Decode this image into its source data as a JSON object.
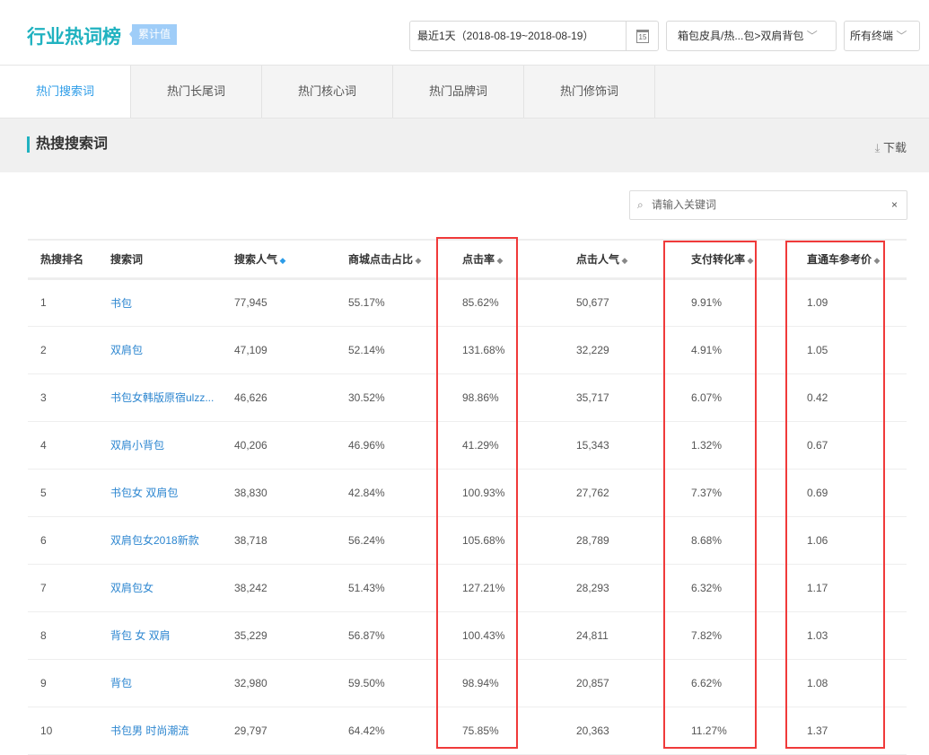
{
  "header": {
    "title": "行业热词榜",
    "badge": "累计值",
    "date_range": "最近1天（2018-08-19~2018-08-19）",
    "calendar_day": "15",
    "category": "箱包皮具/热...包>双肩背包",
    "terminal": "所有终端"
  },
  "tabs": [
    {
      "label": "热门搜索词",
      "active": true
    },
    {
      "label": "热门长尾词"
    },
    {
      "label": "热门核心词"
    },
    {
      "label": "热门品牌词"
    },
    {
      "label": "热门修饰词"
    }
  ],
  "section": {
    "title": "热搜搜索词",
    "download": "下载"
  },
  "search": {
    "placeholder": "请输入关键词",
    "clear": "×"
  },
  "table": {
    "columns": [
      "热搜排名",
      "搜索词",
      "搜索人气",
      "商城点击占比",
      "点击率",
      "点击人气",
      "支付转化率",
      "直通车参考价"
    ],
    "rows": [
      [
        "1",
        "书包",
        "77,945",
        "55.17%",
        "85.62%",
        "50,677",
        "9.91%",
        "1.09"
      ],
      [
        "2",
        "双肩包",
        "47,109",
        "52.14%",
        "131.68%",
        "32,229",
        "4.91%",
        "1.05"
      ],
      [
        "3",
        "书包女韩版原宿ulzz...",
        "46,626",
        "30.52%",
        "98.86%",
        "35,717",
        "6.07%",
        "0.42"
      ],
      [
        "4",
        "双肩小背包",
        "40,206",
        "46.96%",
        "41.29%",
        "15,343",
        "1.32%",
        "0.67"
      ],
      [
        "5",
        "书包女 双肩包",
        "38,830",
        "42.84%",
        "100.93%",
        "27,762",
        "7.37%",
        "0.69"
      ],
      [
        "6",
        "双肩包女2018新款",
        "38,718",
        "56.24%",
        "105.68%",
        "28,789",
        "8.68%",
        "1.06"
      ],
      [
        "7",
        "双肩包女",
        "38,242",
        "51.43%",
        "127.21%",
        "28,293",
        "6.32%",
        "1.17"
      ],
      [
        "8",
        "背包 女 双肩",
        "35,229",
        "56.87%",
        "100.43%",
        "24,811",
        "7.82%",
        "1.03"
      ],
      [
        "9",
        "背包",
        "32,980",
        "59.50%",
        "98.94%",
        "20,857",
        "6.62%",
        "1.08"
      ],
      [
        "10",
        "书包男 时尚潮流",
        "29,797",
        "64.42%",
        "75.85%",
        "20,363",
        "11.27%",
        "1.37"
      ]
    ]
  },
  "colors": {
    "accent": "#20b2c0",
    "link": "#2c86d0",
    "highlight": "#f03a3a"
  }
}
